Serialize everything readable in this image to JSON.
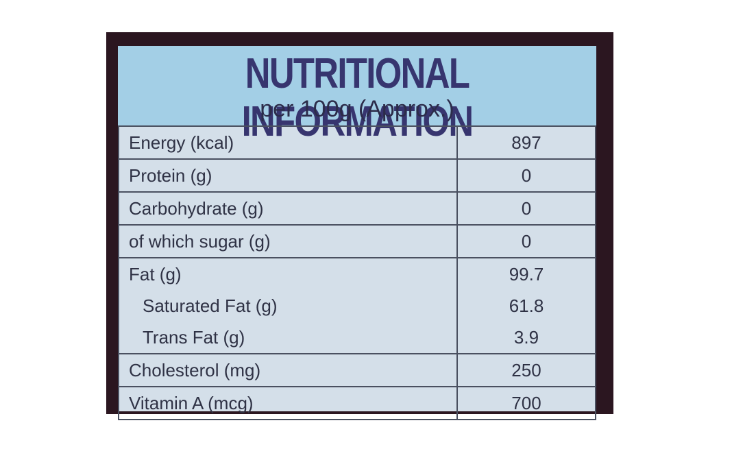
{
  "label": {
    "title": "NUTRITIONAL INFORMATION",
    "subtitle": "per 100g (Approx.)",
    "rows": [
      {
        "name": "Energy (kcal)",
        "value": "897"
      },
      {
        "name": "Protein (g)",
        "value": "0"
      },
      {
        "name": "Carbohydrate (g)",
        "value": "0"
      },
      {
        "name": "of which sugar (g)",
        "value": "0"
      },
      {
        "name": "Fat (g)",
        "value": "99.7"
      },
      {
        "name": "Saturated Fat (g)",
        "value": "61.8"
      },
      {
        "name": "Trans Fat (g)",
        "value": "3.9"
      },
      {
        "name": "Cholesterol (mg)",
        "value": "250"
      },
      {
        "name": "Vitamin A (mcg)",
        "value": "700"
      }
    ]
  },
  "colors": {
    "header": "#a3cfe6",
    "body": "#d4dfe9",
    "title": "#37356f",
    "frame": "#2b1620"
  }
}
